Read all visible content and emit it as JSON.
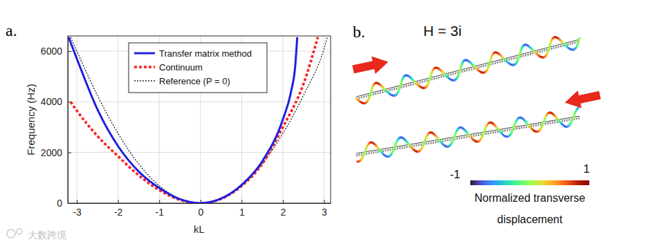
{
  "chart_data": {
    "type": "line",
    "title": "a.",
    "x_label": "kL",
    "y_label": "Frequency (Hz)",
    "xlim": [
      -3.22,
      3.16
    ],
    "ylim": [
      0,
      6600
    ],
    "xticks": [
      -3,
      -2,
      -1,
      0,
      1,
      2,
      3
    ],
    "yticks": [
      0,
      2000,
      4000,
      6000
    ],
    "grid": true,
    "legend": "top",
    "series": [
      {
        "name": "Transfer matrix method",
        "color": "#1f1fe0",
        "line_style": "solid",
        "x": [
          -3.2,
          -3,
          -2.5,
          -2,
          -1.5,
          -1,
          -0.5,
          0,
          0.5,
          1,
          1.5,
          2,
          2.2,
          2.3,
          2.35
        ],
        "values": [
          6550,
          5700,
          3700,
          2250,
          1250,
          600,
          160,
          0,
          180,
          720,
          1650,
          3300,
          4400,
          5400,
          6550
        ]
      },
      {
        "name": "Continuum",
        "color": "#ff2020",
        "line_style": "dotted",
        "x": [
          -3.15,
          -3,
          -2.5,
          -2,
          -1.5,
          -1,
          -0.5,
          0,
          0.5,
          1,
          1.5,
          2,
          2.5,
          2.85
        ],
        "values": [
          4000,
          3650,
          2650,
          1850,
          1100,
          520,
          130,
          0,
          170,
          680,
          1550,
          3000,
          4700,
          6550
        ]
      },
      {
        "name": "Reference (P = 0)",
        "color": "#222222",
        "line_style": "dotted",
        "x": [
          -3.15,
          -3,
          -2.5,
          -2,
          -1.5,
          -1,
          -0.5,
          0,
          0.5,
          1,
          1.5,
          2,
          2.5,
          3,
          3.08
        ],
        "values": [
          6550,
          6000,
          4250,
          2750,
          1550,
          690,
          170,
          0,
          170,
          690,
          1550,
          2750,
          4250,
          6100,
          6550
        ]
      }
    ]
  },
  "panel_b": {
    "label": "b.",
    "title": "H = 3i",
    "colorbar": {
      "range": [
        -1,
        1
      ],
      "ticks": [
        -1,
        1
      ],
      "label": [
        "Normalized transverse",
        "displacement"
      ]
    }
  },
  "watermark": "大数跨境"
}
